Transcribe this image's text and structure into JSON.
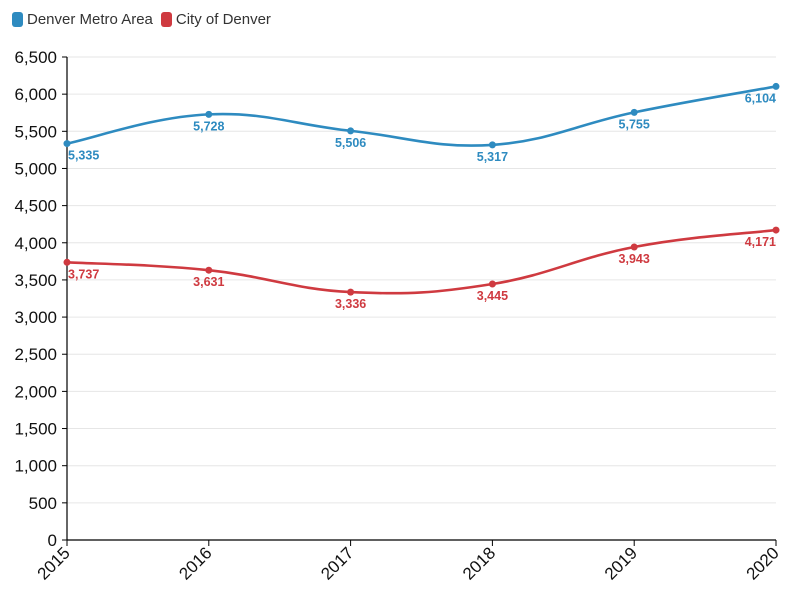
{
  "chart_data": {
    "type": "line",
    "categories": [
      "2015",
      "2016",
      "2017",
      "2018",
      "2019",
      "2020"
    ],
    "series": [
      {
        "name": "Denver Metro Area",
        "color": "#2e8bc0",
        "values": [
          5335,
          5728,
          5506,
          5317,
          5755,
          6104
        ]
      },
      {
        "name": "City of Denver",
        "color": "#cf3a40",
        "values": [
          3737,
          3631,
          3336,
          3445,
          3943,
          4171
        ]
      }
    ],
    "y_ticks": [
      "0",
      "500",
      "1,000",
      "1,500",
      "2,000",
      "2,500",
      "3,000",
      "3,500",
      "4,000",
      "4,500",
      "5,000",
      "5,500",
      "6,000",
      "6,500"
    ],
    "data_labels": [
      [
        "5,335",
        "5,728",
        "5,506",
        "5,317",
        "5,755",
        "6,104"
      ],
      [
        "3,737",
        "3,631",
        "3,336",
        "3,445",
        "3,943",
        "4,171"
      ]
    ],
    "ylim": [
      0,
      6500
    ],
    "y_step": 500,
    "grid": true,
    "legend_position": "top-left"
  }
}
